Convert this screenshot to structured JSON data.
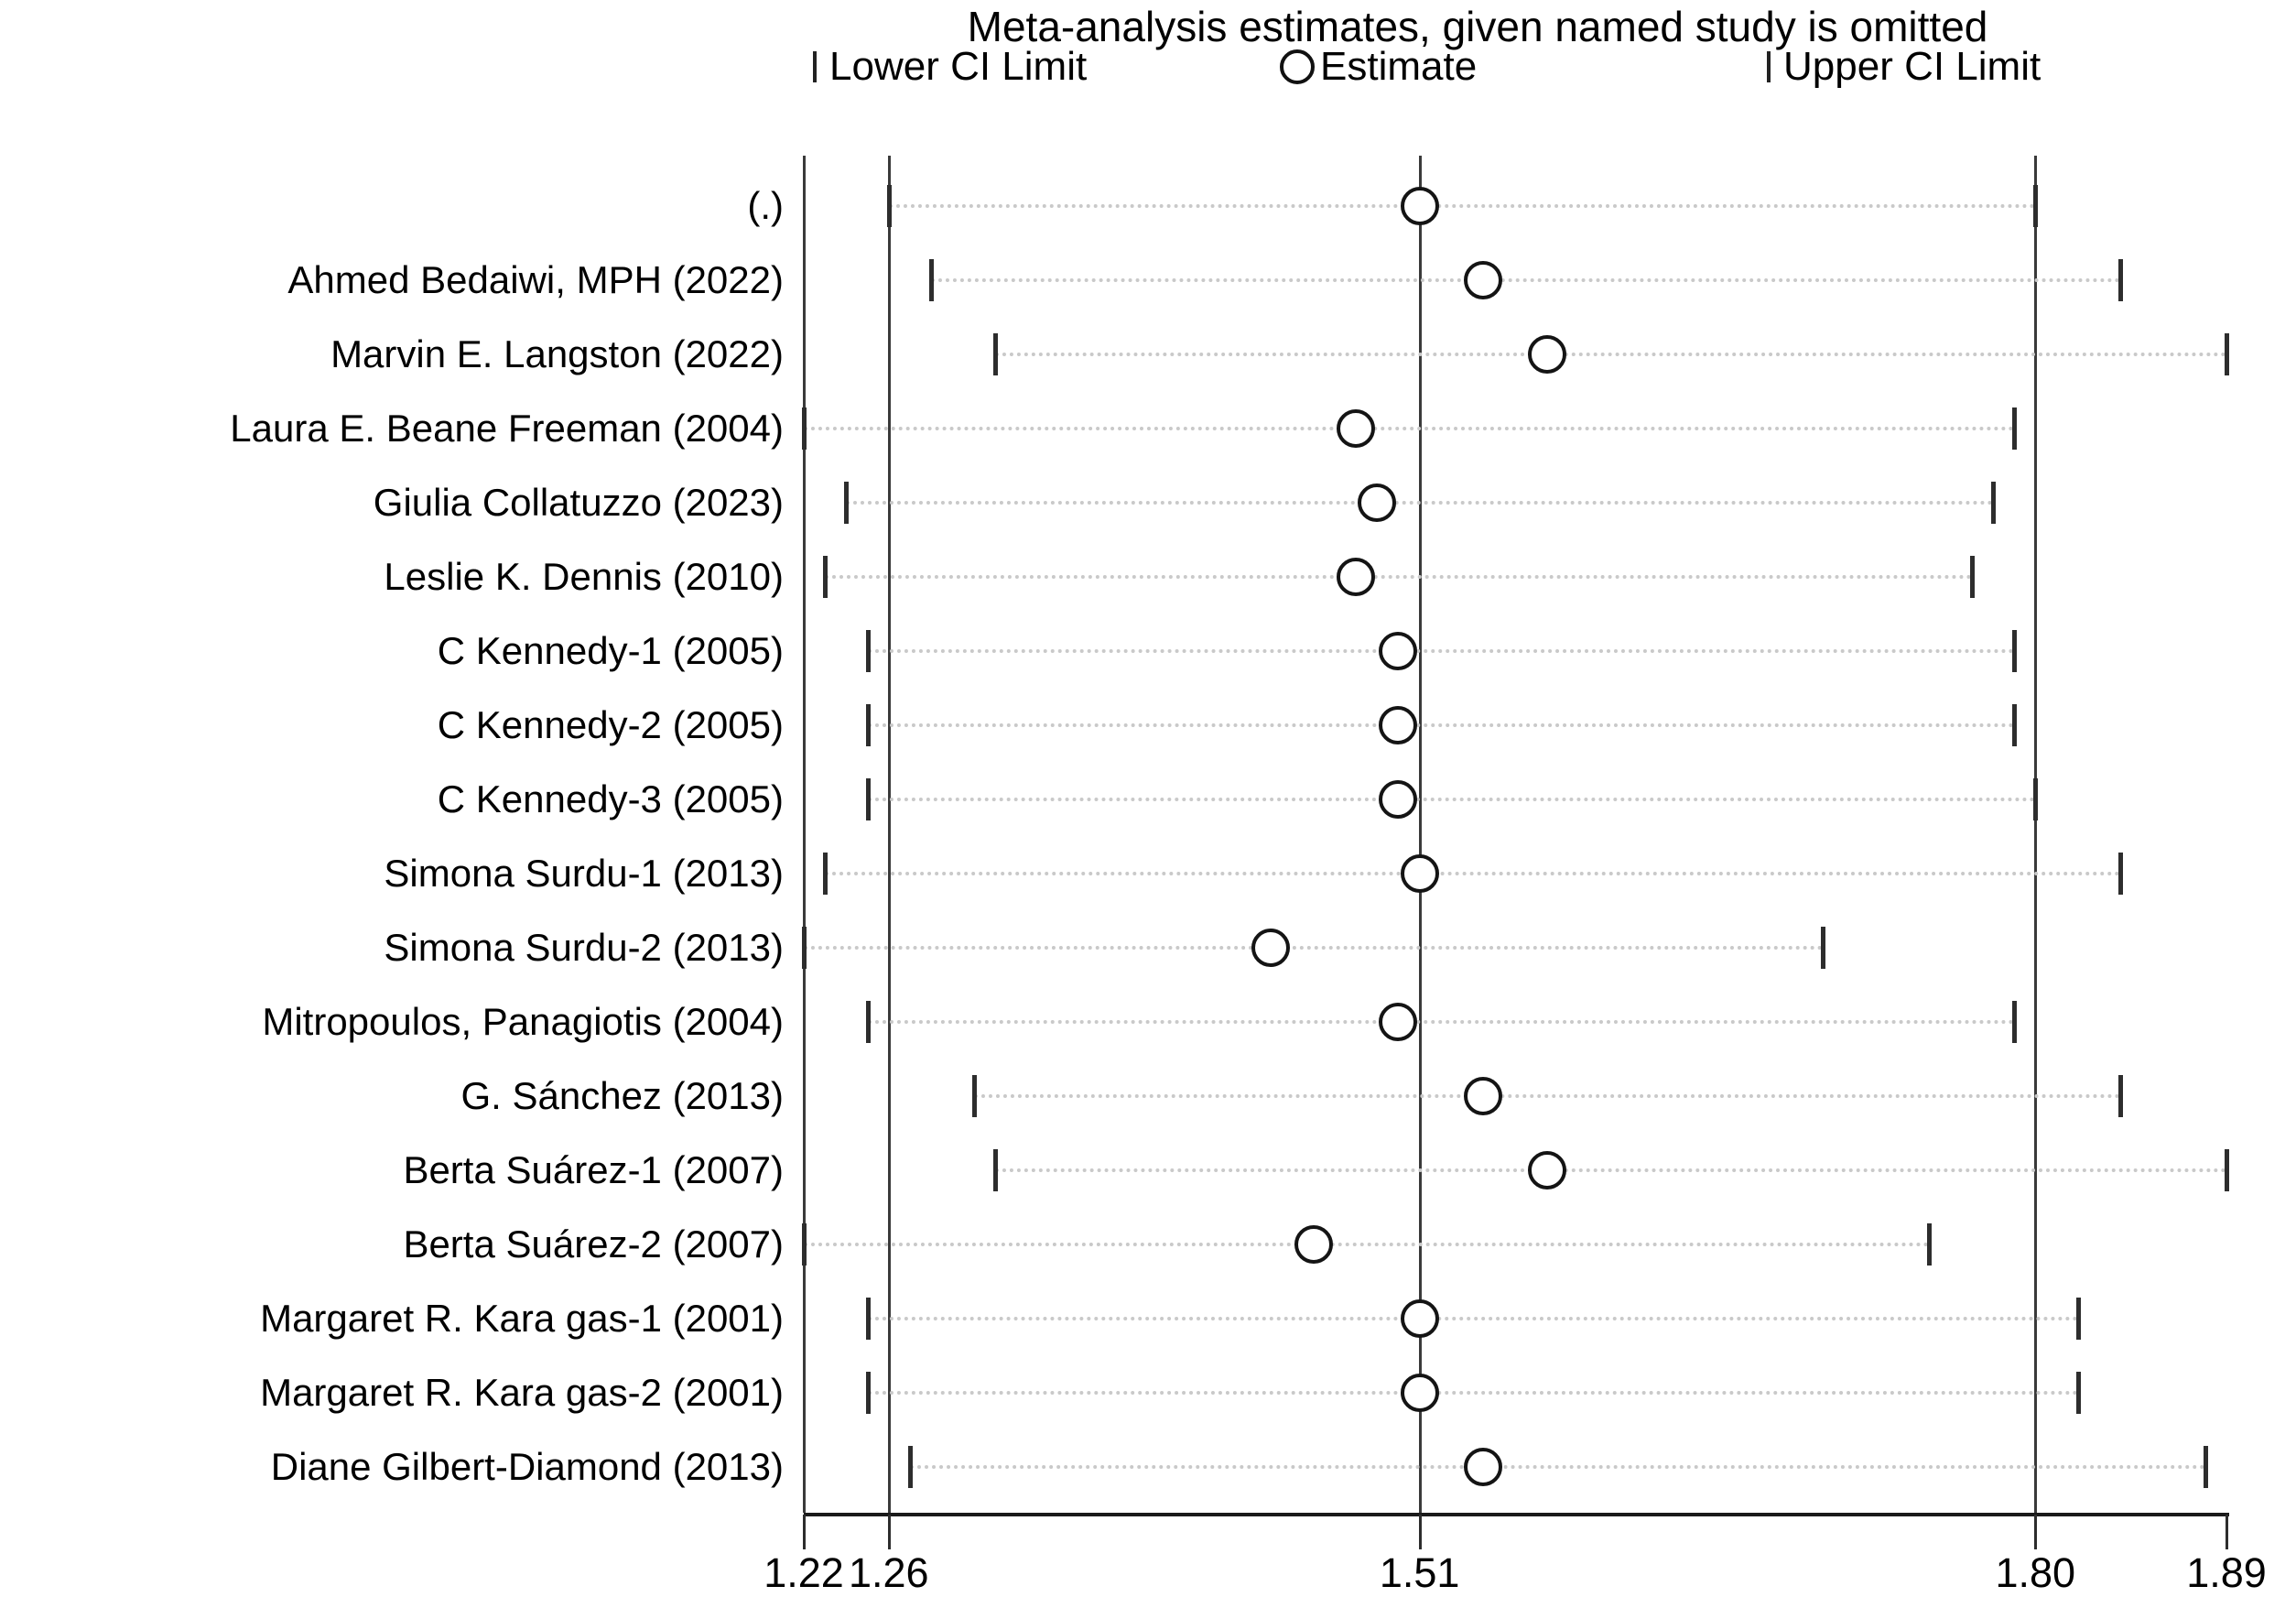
{
  "title": "Meta-analysis estimates, given named study is omitted",
  "legend": {
    "lower_label": "Lower CI Limit",
    "estimate_label": "Estimate",
    "upper_label": "Upper CI Limit"
  },
  "colors": {
    "background": "#ffffff",
    "text": "#000000",
    "reference_line": "#3a3a3a",
    "axis": "#1a1a1a",
    "ci_tick": "#2d2d2d",
    "dotted_guide": "#c9c9c9",
    "marker_stroke": "#141414",
    "marker_fill": "#ffffff"
  },
  "chart_data": {
    "type": "scatter",
    "subtype": "leave-one-out-forest-plot",
    "title": "Meta-analysis estimates, given named study is omitted",
    "xlabel": "",
    "ylabel": "",
    "xlim": [
      1.22,
      1.89
    ],
    "grid": "dotted horizontal row guides between CI limits",
    "legend_position": "top",
    "x_ticks": [
      {
        "label": "1.22",
        "value": 1.22
      },
      {
        "label": "1.26",
        "value": 1.26
      },
      {
        "label": "1.51",
        "value": 1.51
      },
      {
        "label": "1.80",
        "value": 1.8
      },
      {
        "label": "1.89",
        "value": 1.89
      }
    ],
    "reference_lines": [
      1.26,
      1.51,
      1.8
    ],
    "overall_estimate": {
      "lower": 1.26,
      "estimate": 1.51,
      "upper": 1.8
    },
    "studies": [
      {
        "name": "(.)",
        "lower": 1.26,
        "estimate": 1.51,
        "upper": 1.8
      },
      {
        "name": "Ahmed Bedaiwi, MPH (2022)",
        "lower": 1.28,
        "estimate": 1.54,
        "upper": 1.84
      },
      {
        "name": "Marvin E. Langston (2022)",
        "lower": 1.31,
        "estimate": 1.57,
        "upper": 1.89
      },
      {
        "name": "Laura E. Beane Freeman (2004)",
        "lower": 1.22,
        "estimate": 1.48,
        "upper": 1.79
      },
      {
        "name": "Giulia Collatuzzo (2023)",
        "lower": 1.24,
        "estimate": 1.49,
        "upper": 1.78
      },
      {
        "name": "Leslie K. Dennis (2010)",
        "lower": 1.23,
        "estimate": 1.48,
        "upper": 1.77
      },
      {
        "name": "C Kennedy-1 (2005)",
        "lower": 1.25,
        "estimate": 1.5,
        "upper": 1.79
      },
      {
        "name": "C Kennedy-2 (2005)",
        "lower": 1.25,
        "estimate": 1.5,
        "upper": 1.79
      },
      {
        "name": "C Kennedy-3 (2005)",
        "lower": 1.25,
        "estimate": 1.5,
        "upper": 1.8
      },
      {
        "name": "Simona Surdu-1 (2013)",
        "lower": 1.23,
        "estimate": 1.51,
        "upper": 1.84
      },
      {
        "name": "Simona Surdu-2 (2013)",
        "lower": 1.22,
        "estimate": 1.44,
        "upper": 1.7
      },
      {
        "name": "Mitropoulos, Panagiotis (2004)",
        "lower": 1.25,
        "estimate": 1.5,
        "upper": 1.79
      },
      {
        "name": "G. Sánchez (2013)",
        "lower": 1.3,
        "estimate": 1.54,
        "upper": 1.84
      },
      {
        "name": "Berta Suárez-1 (2007)",
        "lower": 1.31,
        "estimate": 1.57,
        "upper": 1.89
      },
      {
        "name": "Berta Suárez-2 (2007)",
        "lower": 1.22,
        "estimate": 1.46,
        "upper": 1.75
      },
      {
        "name": "Margaret R. Kara gas-1 (2001)",
        "lower": 1.25,
        "estimate": 1.51,
        "upper": 1.82
      },
      {
        "name": "Margaret R. Kara gas-2 (2001)",
        "lower": 1.25,
        "estimate": 1.51,
        "upper": 1.82
      },
      {
        "name": "Diane Gilbert-Diamond (2013)",
        "lower": 1.27,
        "estimate": 1.54,
        "upper": 1.88
      }
    ]
  }
}
